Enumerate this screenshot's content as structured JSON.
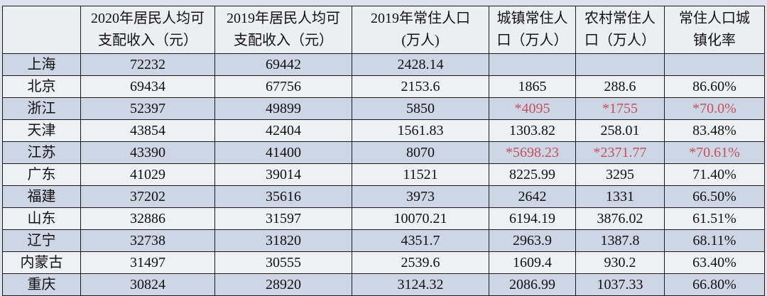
{
  "table": {
    "headers": [
      "",
      "2020年居民人均可支配收入（元）",
      "2019年居民人均可支配收入（元）",
      "2019年常住人口(万人)",
      "城镇常住人口（万人）",
      "农村常住人口（万人）",
      "常住人口城镇化率"
    ],
    "header_lines": [
      [
        "",
        ""
      ],
      [
        "2020年居民人均可",
        "支配收入（元）"
      ],
      [
        "2019年居民人均可",
        "支配收入（元）"
      ],
      [
        "2019年常住人口",
        "(万人)"
      ],
      [
        "城镇常住人",
        "口（万人）"
      ],
      [
        "农村常住人",
        "口（万人）"
      ],
      [
        "常住人口城",
        "镇化率"
      ]
    ],
    "rows": [
      {
        "cells": [
          "上海",
          "72232",
          "69442",
          "2428.14",
          "",
          "",
          ""
        ],
        "estimated": false
      },
      {
        "cells": [
          "北京",
          "69434",
          "67756",
          "2153.6",
          "1865",
          "288.6",
          "86.60%"
        ],
        "estimated": false
      },
      {
        "cells": [
          "浙江",
          "52397",
          "49899",
          "5850",
          "*4095",
          "*1755",
          "*70.0%"
        ],
        "estimated": true
      },
      {
        "cells": [
          "天津",
          "43854",
          "42404",
          "1561.83",
          "1303.82",
          "258.01",
          "83.48%"
        ],
        "estimated": false
      },
      {
        "cells": [
          "江苏",
          "43390",
          "41400",
          "8070",
          "*5698.23",
          "*2371.77",
          "*70.61%"
        ],
        "estimated": true
      },
      {
        "cells": [
          "广东",
          "41029",
          "39014",
          "11521",
          "8225.99",
          "3295",
          "71.40%"
        ],
        "estimated": false
      },
      {
        "cells": [
          "福建",
          "37202",
          "35616",
          "3973",
          "2642",
          "1331",
          "66.50%"
        ],
        "estimated": false
      },
      {
        "cells": [
          "山东",
          "32886",
          "31597",
          "10070.21",
          "6194.19",
          "3876.02",
          "61.51%"
        ],
        "estimated": false
      },
      {
        "cells": [
          "辽宁",
          "32738",
          "31820",
          "4351.7",
          "2963.9",
          "1387.8",
          "68.11%"
        ],
        "estimated": false
      },
      {
        "cells": [
          "内蒙古",
          "31497",
          "30555",
          "2539.6",
          "1609.4",
          "930.2",
          "63.40%"
        ],
        "estimated": false
      },
      {
        "cells": [
          "重庆",
          "30824",
          "28920",
          "3124.32",
          "2086.99",
          "1037.33",
          "66.80%"
        ],
        "estimated": false
      }
    ]
  },
  "colors": {
    "shaded_row": "#cdd6e4",
    "plain_row": "#eef0f4",
    "estimate_text": "#c5505c"
  }
}
